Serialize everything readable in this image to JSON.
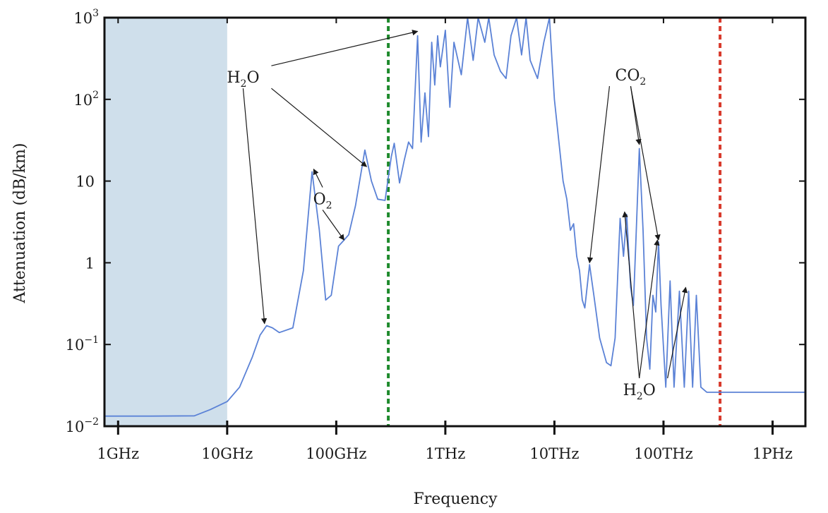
{
  "chart_data": {
    "type": "line",
    "xlabel": "Frequency",
    "ylabel": "Attenuation (dB/km)",
    "x_scale": "log",
    "y_scale": "log",
    "x_unit": "Hz",
    "xlim": [
      750000000.0,
      2000000000000000.0
    ],
    "ylim": [
      0.01,
      1000
    ],
    "x_ticks": [
      {
        "value": 1000000000.0,
        "label": "1GHz"
      },
      {
        "value": 10000000000.0,
        "label": "10GHz"
      },
      {
        "value": 100000000000.0,
        "label": "100GHz"
      },
      {
        "value": 1000000000000.0,
        "label": "1THz"
      },
      {
        "value": 10000000000000.0,
        "label": "10THz"
      },
      {
        "value": 100000000000000.0,
        "label": "100THz"
      },
      {
        "value": 1000000000000000.0,
        "label": "1PHz"
      }
    ],
    "y_ticks": [
      {
        "value": 0.01,
        "base": "10",
        "exp": "−2"
      },
      {
        "value": 0.1,
        "base": "10",
        "exp": "−1"
      },
      {
        "value": 1,
        "base": "1",
        "exp": ""
      },
      {
        "value": 10,
        "base": "10",
        "exp": ""
      },
      {
        "value": 100,
        "base": "10",
        "exp": "2"
      },
      {
        "value": 1000,
        "base": "10",
        "exp": "3"
      }
    ],
    "shaded_region": {
      "x_from": 750000000.0,
      "x_to": 10000000000.0,
      "color": "#cfdfeb"
    },
    "vertical_lines": [
      {
        "x": 300000000000.0,
        "color": "#1e8a2c"
      },
      {
        "x": 330000000000000.0,
        "color": "#d83a2c"
      }
    ],
    "grid": false,
    "legend": "none",
    "series": [
      {
        "color": "#5b82d6",
        "points": [
          [
            750000000.0,
            0.0133
          ],
          [
            1000000000.0,
            0.0133
          ],
          [
            2000000000.0,
            0.0133
          ],
          [
            5000000000.0,
            0.0134
          ],
          [
            7000000000.0,
            0.016
          ],
          [
            10000000000.0,
            0.02
          ],
          [
            13000000000.0,
            0.03
          ],
          [
            17000000000.0,
            0.07
          ],
          [
            20000000000.0,
            0.13
          ],
          [
            23000000000.0,
            0.17
          ],
          [
            26000000000.0,
            0.16
          ],
          [
            30000000000.0,
            0.14
          ],
          [
            40000000000.0,
            0.16
          ],
          [
            50000000000.0,
            0.8
          ],
          [
            60000000000.0,
            13
          ],
          [
            70000000000.0,
            2.5
          ],
          [
            80000000000.0,
            0.35
          ],
          [
            90000000000.0,
            0.4
          ],
          [
            105000000000.0,
            1.6
          ],
          [
            118000000000.0,
            1.9
          ],
          [
            130000000000.0,
            2.2
          ],
          [
            150000000000.0,
            5
          ],
          [
            183000000000.0,
            24
          ],
          [
            210000000000.0,
            10
          ],
          [
            240000000000.0,
            6
          ],
          [
            280000000000.0,
            5.8
          ],
          [
            320000000000.0,
            20
          ],
          [
            340000000000.0,
            29
          ],
          [
            380000000000.0,
            9.5
          ],
          [
            420000000000.0,
            18
          ],
          [
            460000000000.0,
            30
          ],
          [
            500000000000.0,
            25
          ],
          [
            557000000000.0,
            600
          ],
          [
            600000000000.0,
            30
          ],
          [
            650000000000.0,
            120
          ],
          [
            700000000000.0,
            35
          ],
          [
            750000000000.0,
            500
          ],
          [
            800000000000.0,
            150
          ],
          [
            850000000000.0,
            600
          ],
          [
            900000000000.0,
            250
          ],
          [
            1000000000000.0,
            700
          ],
          [
            1100000000000.0,
            80
          ],
          [
            1200000000000.0,
            500
          ],
          [
            1400000000000.0,
            200
          ],
          [
            1600000000000.0,
            1000
          ],
          [
            1800000000000.0,
            300
          ],
          [
            2000000000000.0,
            1000
          ],
          [
            2300000000000.0,
            500
          ],
          [
            2500000000000.0,
            1000
          ],
          [
            2800000000000.0,
            350
          ],
          [
            3200000000000.0,
            220
          ],
          [
            3600000000000.0,
            180
          ],
          [
            4000000000000.0,
            600
          ],
          [
            4500000000000.0,
            1000
          ],
          [
            5000000000000.0,
            350
          ],
          [
            5500000000000.0,
            1000
          ],
          [
            6000000000000.0,
            300
          ],
          [
            7000000000000.0,
            180
          ],
          [
            8000000000000.0,
            500
          ],
          [
            9000000000000.0,
            1000
          ],
          [
            9500000000000.0,
            300
          ],
          [
            10000000000000.0,
            100
          ],
          [
            11000000000000.0,
            30
          ],
          [
            12000000000000.0,
            10
          ],
          [
            13000000000000.0,
            6
          ],
          [
            14000000000000.0,
            2.5
          ],
          [
            15000000000000.0,
            3
          ],
          [
            16000000000000.0,
            1.2
          ],
          [
            17000000000000.0,
            0.8
          ],
          [
            18000000000000.0,
            0.35
          ],
          [
            19000000000000.0,
            0.28
          ],
          [
            21000000000000.0,
            0.95
          ],
          [
            23000000000000.0,
            0.4
          ],
          [
            26000000000000.0,
            0.12
          ],
          [
            30000000000000.0,
            0.06
          ],
          [
            33000000000000.0,
            0.055
          ],
          [
            36000000000000.0,
            0.12
          ],
          [
            40000000000000.0,
            3.5
          ],
          [
            43000000000000.0,
            1.2
          ],
          [
            46000000000000.0,
            3.9
          ],
          [
            50000000000000.0,
            0.5
          ],
          [
            53000000000000.0,
            0.3
          ],
          [
            56000000000000.0,
            2
          ],
          [
            60000000000000.0,
            25
          ],
          [
            65000000000000.0,
            2.5
          ],
          [
            70000000000000.0,
            0.12
          ],
          [
            75000000000000.0,
            0.05
          ],
          [
            80000000000000.0,
            0.4
          ],
          [
            85000000000000.0,
            0.25
          ],
          [
            90000000000000.0,
            1.8
          ],
          [
            95000000000000.0,
            0.3
          ],
          [
            105000000000000.0,
            0.03
          ],
          [
            115000000000000.0,
            0.6
          ],
          [
            125000000000000.0,
            0.03
          ],
          [
            140000000000000.0,
            0.45
          ],
          [
            155000000000000.0,
            0.03
          ],
          [
            170000000000000.0,
            0.45
          ],
          [
            185000000000000.0,
            0.03
          ],
          [
            200000000000000.0,
            0.4
          ],
          [
            220000000000000.0,
            0.03
          ],
          [
            250000000000000.0,
            0.026
          ],
          [
            300000000000000.0,
            0.026
          ],
          [
            500000000000000.0,
            0.026
          ],
          [
            1000000000000000.0,
            0.026
          ],
          [
            2000000000000000.0,
            0.026
          ]
        ]
      }
    ],
    "annotations": [
      {
        "text": "H",
        "sub": "2",
        "rest": "O",
        "x": 14000000000.0,
        "y": 160,
        "arrows": [
          [
            22000000000.0,
            0.18
          ],
          [
            190000000000.0,
            15
          ],
          [
            557000000000.0,
            680
          ]
        ]
      },
      {
        "text": "O",
        "sub": "2",
        "rest": "",
        "x": 75000000000.0,
        "y": 5.2,
        "arrows": [
          [
            62000000000.0,
            14
          ],
          [
            118000000000.0,
            1.9
          ]
        ]
      },
      {
        "text": "CO",
        "sub": "2",
        "rest": "",
        "x": 50000000000000.0,
        "y": 170,
        "arrows": [
          [
            21000000000000.0,
            1.0
          ],
          [
            60000000000000.0,
            28
          ],
          [
            90000000000000.0,
            1.9
          ]
        ]
      },
      {
        "text": "H",
        "sub": "2",
        "rest": "O",
        "x": 60000000000000.0,
        "y": 0.024,
        "arrows": [
          [
            44000000000000.0,
            4.2
          ],
          [
            88000000000000.0,
            1.9
          ],
          [
            160000000000000.0,
            0.5
          ]
        ]
      }
    ]
  }
}
